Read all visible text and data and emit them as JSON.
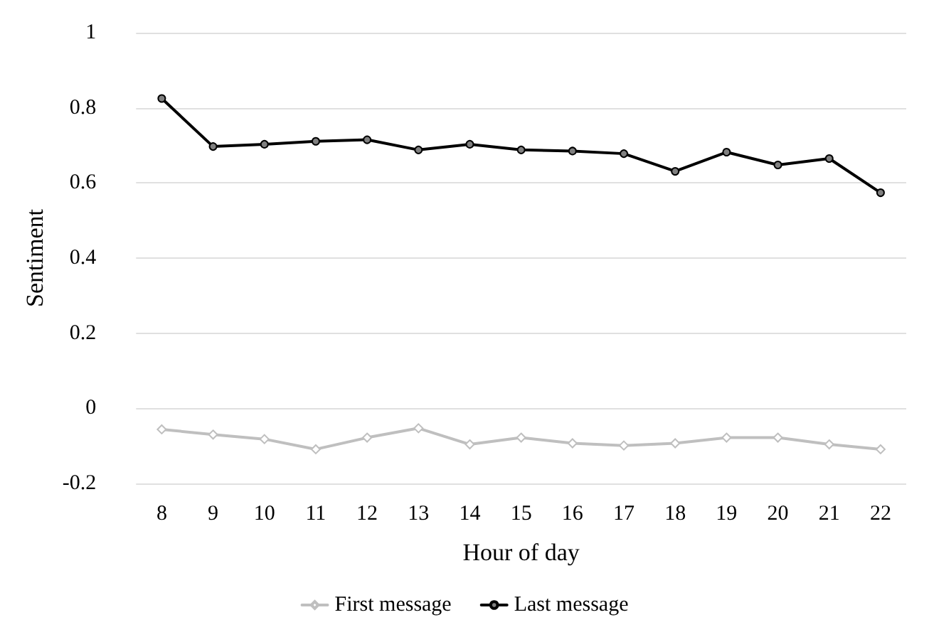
{
  "chart_data": {
    "type": "line",
    "xlabel": "Hour of day",
    "ylabel": "Sentiment",
    "categories": [
      "8",
      "9",
      "10",
      "11",
      "12",
      "13",
      "14",
      "15",
      "16",
      "17",
      "18",
      "19",
      "20",
      "21",
      "22"
    ],
    "series": [
      {
        "name": "First message",
        "color": "#bfbfbf",
        "marker": "diamond",
        "values": [
          -0.056,
          -0.07,
          -0.082,
          -0.109,
          -0.078,
          -0.053,
          -0.096,
          -0.078,
          -0.093,
          -0.099,
          -0.093,
          -0.078,
          -0.078,
          -0.096,
          -0.109
        ]
      },
      {
        "name": "Last message",
        "color": "#000000",
        "marker": "circle",
        "values": [
          0.825,
          0.697,
          0.703,
          0.711,
          0.715,
          0.688,
          0.703,
          0.688,
          0.685,
          0.678,
          0.631,
          0.682,
          0.648,
          0.665,
          0.574
        ]
      }
    ],
    "ylim": [
      -0.2,
      1
    ],
    "yticks": [
      -0.2,
      0,
      0.2,
      0.4,
      0.6,
      0.8,
      1
    ],
    "grid": "y",
    "legend": "bottom"
  }
}
